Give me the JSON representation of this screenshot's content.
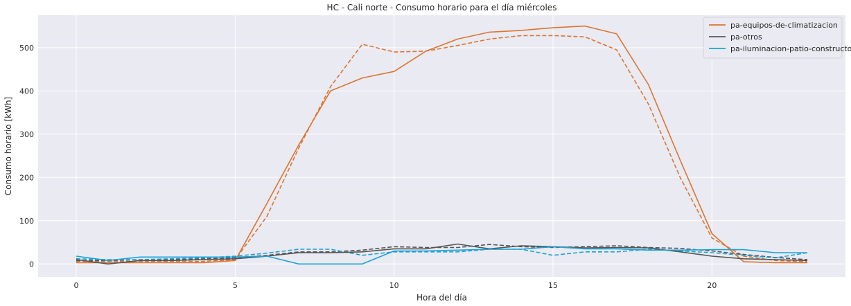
{
  "chart_data": {
    "type": "line",
    "title": "HC - Cali norte - Consumo horario para el día miércoles",
    "xlabel": "Hora del día",
    "ylabel": "Consumo horario [kWh]",
    "xlim": [
      -1.2,
      24.2
    ],
    "ylim": [
      -30,
      575
    ],
    "xticks": [
      0,
      5,
      10,
      15,
      20
    ],
    "yticks": [
      0,
      100,
      200,
      300,
      400,
      500
    ],
    "grid": true,
    "legend_position": "top-right",
    "x": [
      0,
      1,
      2,
      3,
      4,
      5,
      6,
      7,
      8,
      9,
      10,
      11,
      12,
      13,
      14,
      15,
      16,
      17,
      18,
      19,
      20,
      21,
      22,
      23
    ],
    "series": [
      {
        "name": "pa-equipos-de-climatizacion",
        "color": "#dd7530",
        "style": "solid",
        "values": [
          3,
          3,
          3,
          3,
          3,
          8,
          140,
          275,
          400,
          430,
          445,
          492,
          520,
          536,
          540,
          546,
          550,
          532,
          415,
          240,
          70,
          5,
          3,
          3
        ]
      },
      {
        "name": "pa-otros",
        "color": "#555555",
        "style": "solid",
        "values": [
          10,
          0,
          8,
          8,
          10,
          12,
          18,
          26,
          26,
          28,
          35,
          35,
          46,
          35,
          42,
          40,
          37,
          38,
          37,
          28,
          18,
          12,
          10,
          8
        ]
      },
      {
        "name": "pa-iluminacion-patio-constructor",
        "color": "#1ba3d8",
        "style": "solid",
        "values": [
          18,
          8,
          16,
          16,
          16,
          16,
          18,
          0,
          0,
          0,
          30,
          30,
          32,
          34,
          34,
          40,
          35,
          35,
          32,
          32,
          33,
          33,
          26,
          26
        ]
      },
      {
        "color": "#dd7530",
        "style": "dashed",
        "values": [
          6,
          6,
          6,
          6,
          6,
          10,
          110,
          268,
          410,
          508,
          490,
          492,
          505,
          520,
          528,
          528,
          525,
          495,
          370,
          200,
          60,
          18,
          8,
          5
        ]
      },
      {
        "color": "#555555",
        "style": "dashed",
        "values": [
          8,
          8,
          10,
          10,
          12,
          14,
          20,
          28,
          28,
          32,
          40,
          38,
          38,
          45,
          40,
          38,
          40,
          42,
          38,
          36,
          30,
          22,
          15,
          10
        ]
      },
      {
        "color": "#1ba3d8",
        "style": "dashed",
        "values": [
          12,
          10,
          10,
          12,
          14,
          18,
          25,
          34,
          34,
          20,
          28,
          28,
          28,
          34,
          34,
          20,
          28,
          28,
          34,
          30,
          26,
          20,
          14,
          26
        ]
      }
    ]
  }
}
